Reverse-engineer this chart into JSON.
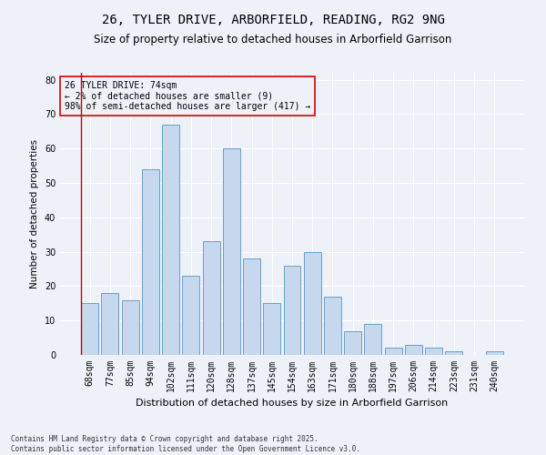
{
  "title": "26, TYLER DRIVE, ARBORFIELD, READING, RG2 9NG",
  "subtitle": "Size of property relative to detached houses in Arborfield Garrison",
  "xlabel": "Distribution of detached houses by size in Arborfield Garrison",
  "ylabel": "Number of detached properties",
  "categories": [
    "68sqm",
    "77sqm",
    "85sqm",
    "94sqm",
    "102sqm",
    "111sqm",
    "120sqm",
    "128sqm",
    "137sqm",
    "145sqm",
    "154sqm",
    "163sqm",
    "171sqm",
    "180sqm",
    "188sqm",
    "197sqm",
    "206sqm",
    "214sqm",
    "223sqm",
    "231sqm",
    "240sqm"
  ],
  "values": [
    15,
    18,
    16,
    54,
    67,
    23,
    33,
    60,
    28,
    15,
    26,
    30,
    17,
    7,
    9,
    2,
    3,
    2,
    1,
    0,
    1
  ],
  "bar_color": "#C5D8EE",
  "bar_edge_color": "#6AA0C7",
  "background_color": "#EEF2F8",
  "grid_color": "#FFFFFF",
  "annotation_box_text": "26 TYLER DRIVE: 74sqm\n← 2% of detached houses are smaller (9)\n98% of semi-detached houses are larger (417) →",
  "annotation_box_color": "#DD0000",
  "ylim": [
    0,
    82
  ],
  "yticks": [
    0,
    10,
    20,
    30,
    40,
    50,
    60,
    70,
    80
  ],
  "footer_text": "Contains HM Land Registry data © Crown copyright and database right 2025.\nContains public sector information licensed under the Open Government Licence v3.0.",
  "title_fontsize": 10,
  "subtitle_fontsize": 8.5,
  "xlabel_fontsize": 8,
  "ylabel_fontsize": 7.5,
  "tick_fontsize": 7,
  "annotation_fontsize": 7,
  "footer_fontsize": 5.5
}
